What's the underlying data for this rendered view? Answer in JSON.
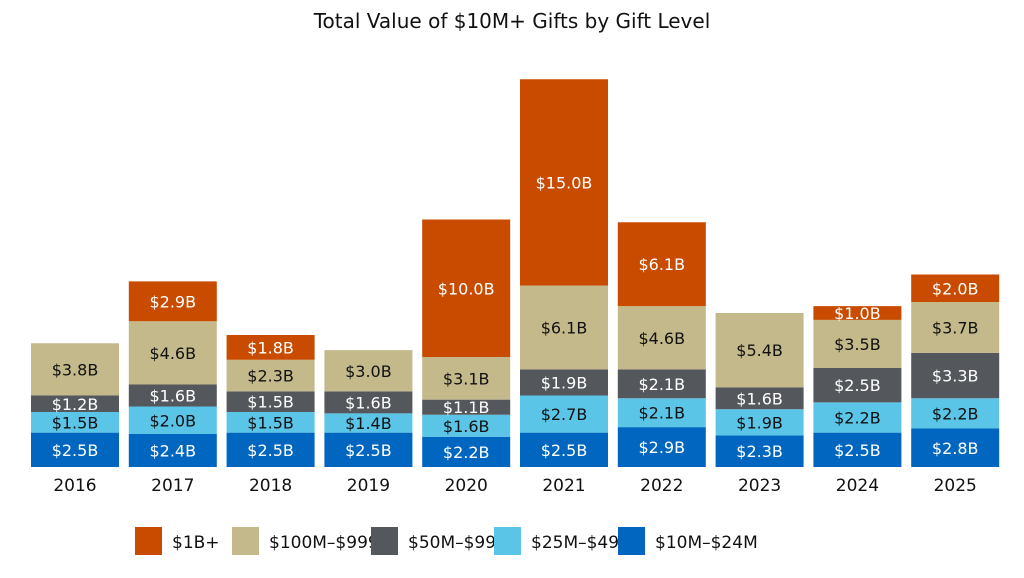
{
  "chart_data": {
    "type": "bar",
    "stacked": true,
    "title": "Total Value of $10M+ Gifts by Gift Level",
    "xlabel": "",
    "ylabel": "",
    "ylim": [
      0,
      30
    ],
    "grid": false,
    "legend_position": "bottom",
    "categories": [
      "2016",
      "2017",
      "2018",
      "2019",
      "2020",
      "2021",
      "2022",
      "2023",
      "2024",
      "2025"
    ],
    "series": [
      {
        "name": "$10M–$24M",
        "color": "#0066BF",
        "label_color": "#ffffff",
        "values": [
          2.5,
          2.4,
          2.5,
          2.5,
          2.2,
          2.5,
          2.9,
          2.3,
          2.5,
          2.8
        ],
        "labels": [
          "$2.5B",
          "$2.4B",
          "$2.5B",
          "$2.5B",
          "$2.2B",
          "$2.5B",
          "$2.9B",
          "$2.3B",
          "$2.5B",
          "$2.8B"
        ]
      },
      {
        "name": "$25M–$49M",
        "color": "#5BC5E8",
        "label_color": "#111111",
        "values": [
          1.5,
          2.0,
          1.5,
          1.4,
          1.6,
          2.7,
          2.1,
          1.9,
          2.2,
          2.2
        ],
        "labels": [
          "$1.5B",
          "$2.0B",
          "$1.5B",
          "$1.4B",
          "$1.6B",
          "$2.7B",
          "$2.1B",
          "$1.9B",
          "$2.2B",
          "$2.2B"
        ]
      },
      {
        "name": "$50M–$99M",
        "color": "#54585C",
        "label_color": "#ffffff",
        "values": [
          1.2,
          1.6,
          1.5,
          1.6,
          1.1,
          1.9,
          2.1,
          1.6,
          2.5,
          3.3
        ],
        "labels": [
          "$1.2B",
          "$1.6B",
          "$1.5B",
          "$1.6B",
          "$1.1B",
          "$1.9B",
          "$2.1B",
          "$1.6B",
          "$2.5B",
          "$3.3B"
        ]
      },
      {
        "name": "$100M–$999M",
        "color": "#C4B98B",
        "label_color": "#111111",
        "values": [
          3.8,
          4.6,
          2.3,
          3.0,
          3.1,
          6.1,
          4.6,
          5.4,
          3.5,
          3.7
        ],
        "labels": [
          "$3.8B",
          "$4.6B",
          "$2.3B",
          "$3.0B",
          "$3.1B",
          "$6.1B",
          "$4.6B",
          "$5.4B",
          "$3.5B",
          "$3.7B"
        ]
      },
      {
        "name": "$1B+",
        "color": "#C84B00",
        "label_color": "#ffffff",
        "values": [
          0,
          2.9,
          1.8,
          0,
          10.0,
          15.0,
          6.1,
          0,
          1.0,
          2.0
        ],
        "labels": [
          "",
          "$2.9B",
          "$1.8B",
          "",
          "$10.0B",
          "$15.0B",
          "$6.1B",
          "",
          "$1.0B",
          "$2.0B"
        ]
      }
    ],
    "legend_order": [
      "$1B+",
      "$100M–$999M",
      "$50M–$99M",
      "$25M–$49M",
      "$10M–$24M"
    ]
  }
}
